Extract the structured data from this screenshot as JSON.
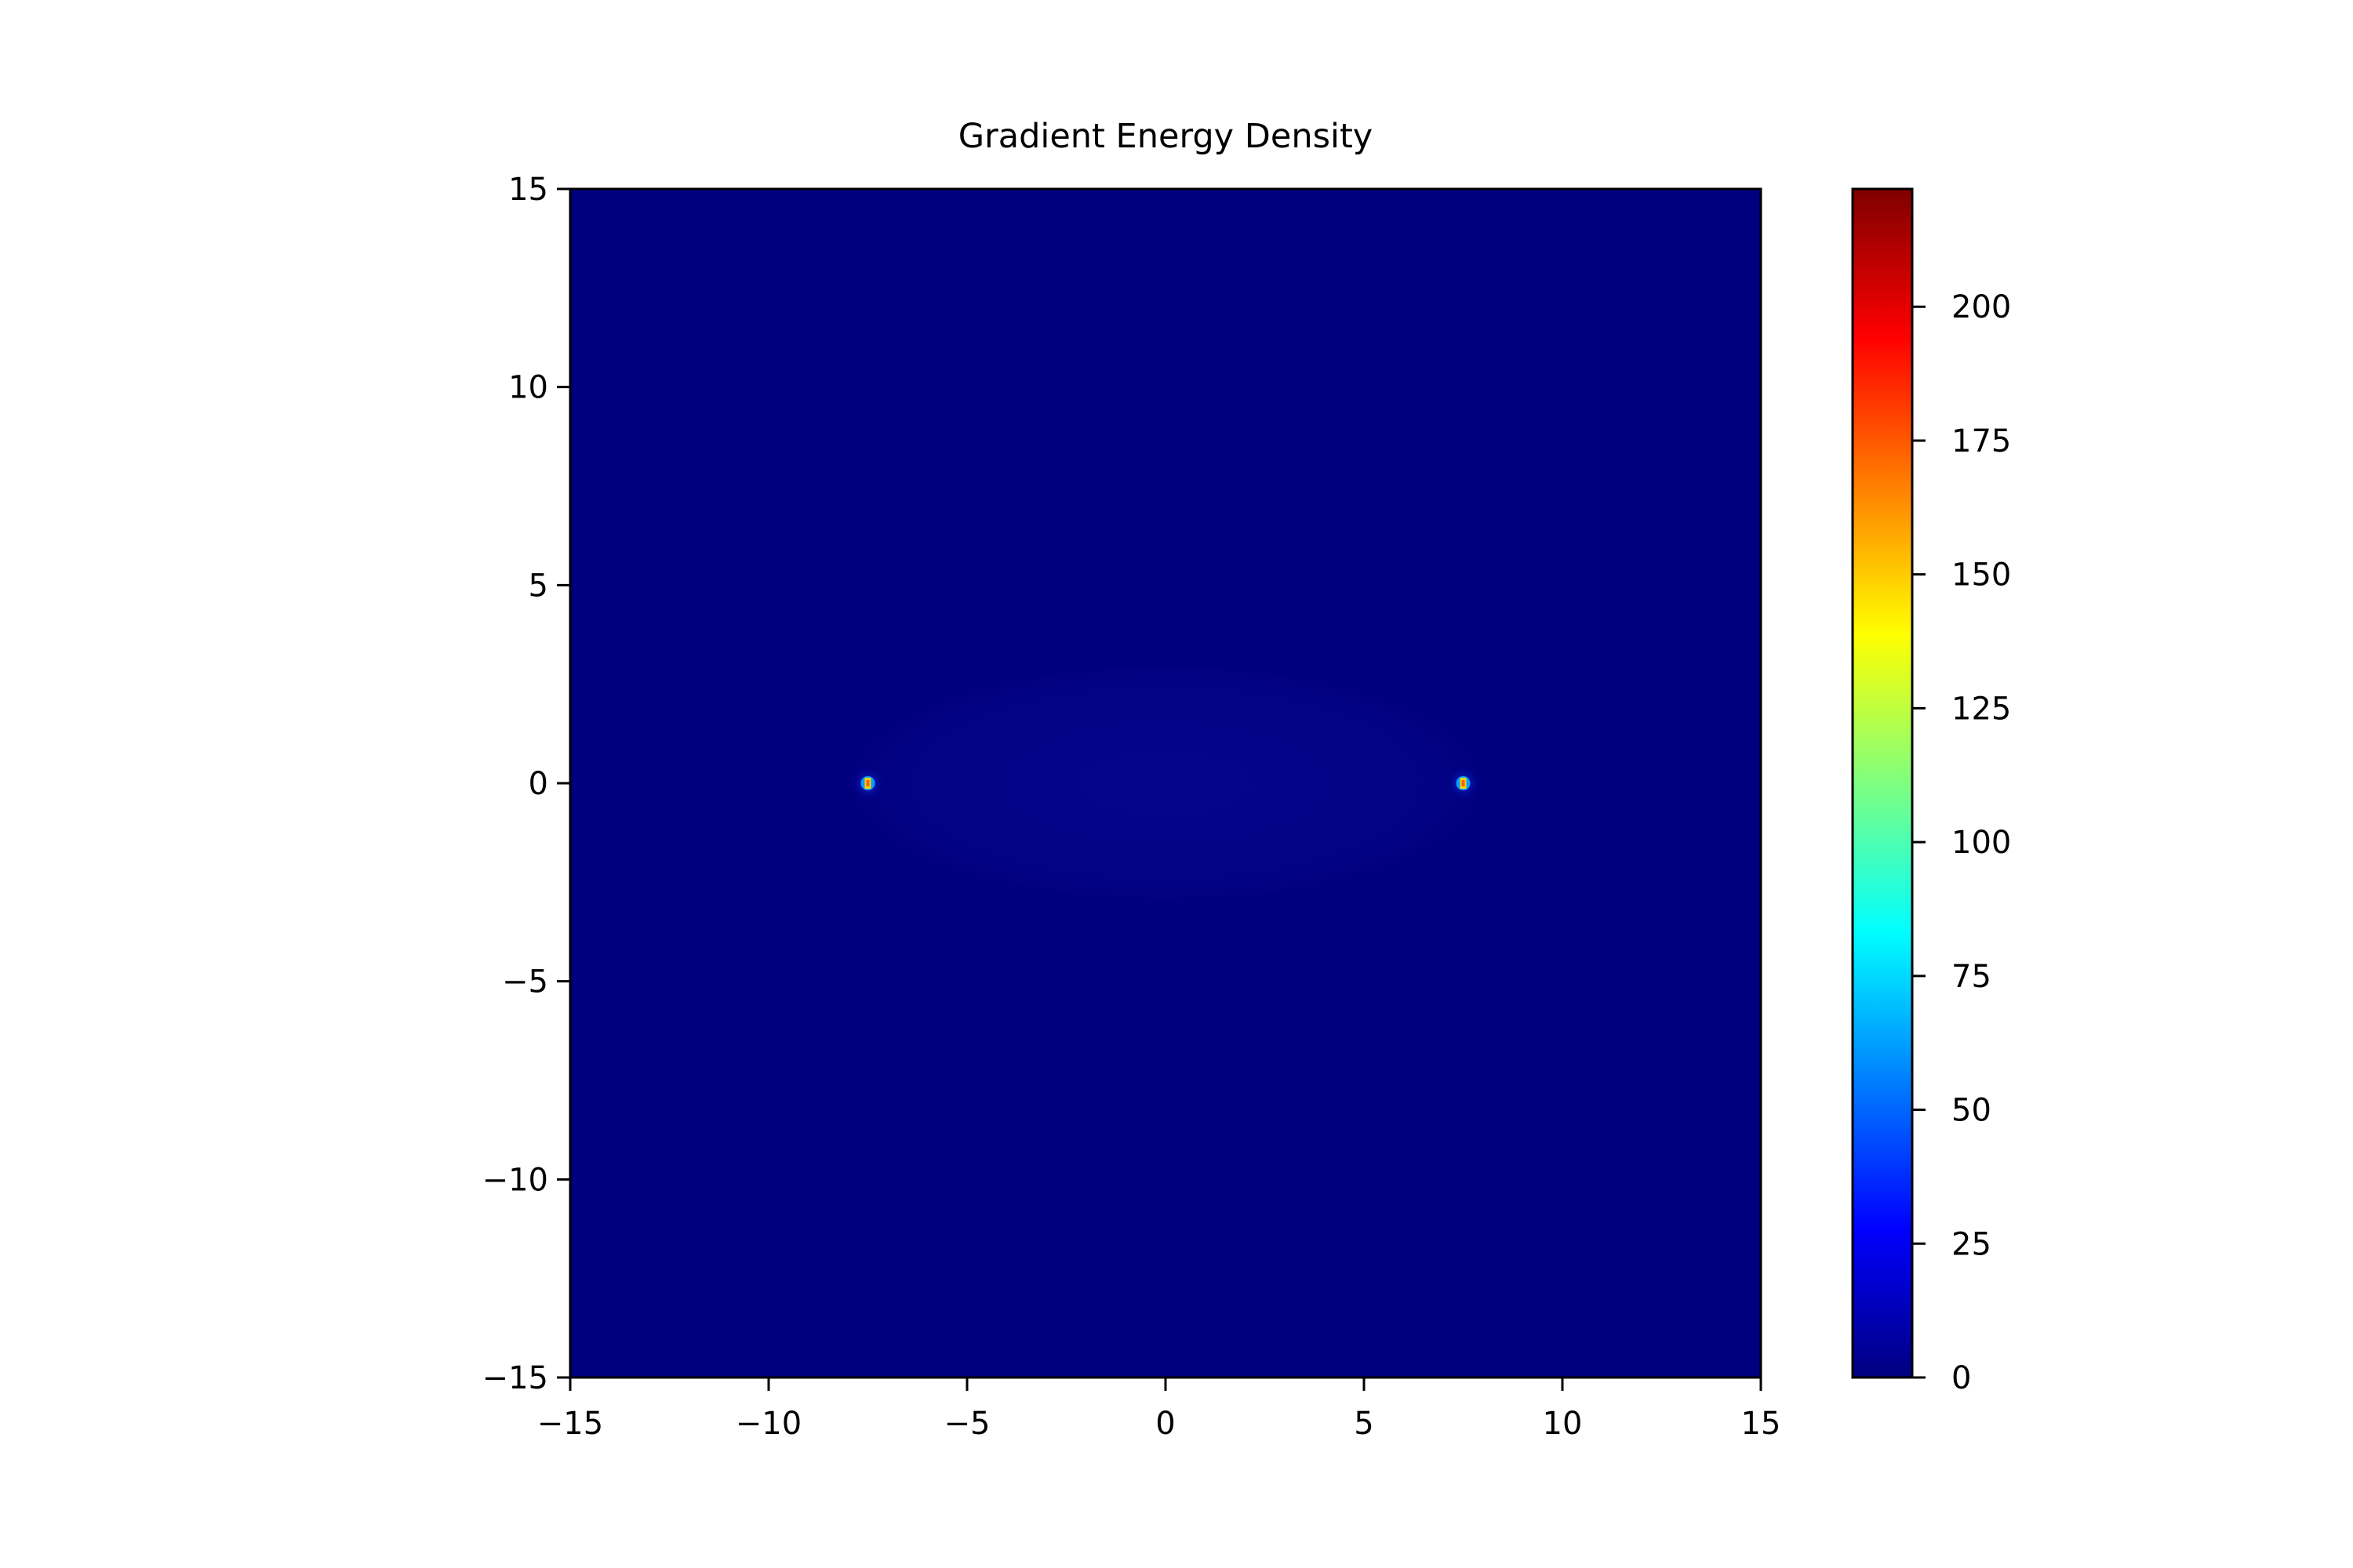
{
  "chart_data": {
    "type": "heatmap",
    "title": "Gradient Energy Density",
    "xlabel": "",
    "ylabel": "",
    "xlim": [
      -15,
      15
    ],
    "ylim": [
      -15,
      15
    ],
    "x_ticks": [
      -15,
      -10,
      -5,
      0,
      5,
      10,
      15
    ],
    "y_ticks": [
      -15,
      -10,
      -5,
      0,
      5,
      10,
      15
    ],
    "x_tick_labels": [
      "−15",
      "−10",
      "−5",
      "0",
      "5",
      "10",
      "15"
    ],
    "y_tick_labels": [
      "−15",
      "−10",
      "−5",
      "0",
      "5",
      "10",
      "15"
    ],
    "colormap": "jet",
    "background_value": 0,
    "colorbar": {
      "range": [
        0,
        222
      ],
      "ticks": [
        0,
        25,
        50,
        75,
        100,
        125,
        150,
        175,
        200
      ],
      "tick_labels": [
        "0",
        "25",
        "50",
        "75",
        "100",
        "125",
        "150",
        "175",
        "200"
      ],
      "colors": [
        "#00007f",
        "#0000ff",
        "#007fff",
        "#00ffff",
        "#7fff7f",
        "#ffff00",
        "#ff7f00",
        "#ff0000",
        "#7f0000"
      ]
    },
    "hotspots": [
      {
        "x": -7.5,
        "y": 0,
        "peak": 222
      },
      {
        "x": 7.5,
        "y": 0,
        "peak": 222
      }
    ],
    "faint_halo": {
      "center": [
        0,
        0
      ],
      "semi_axis_x": 8,
      "semi_axis_y": 3,
      "value": 4
    },
    "grid": false
  }
}
